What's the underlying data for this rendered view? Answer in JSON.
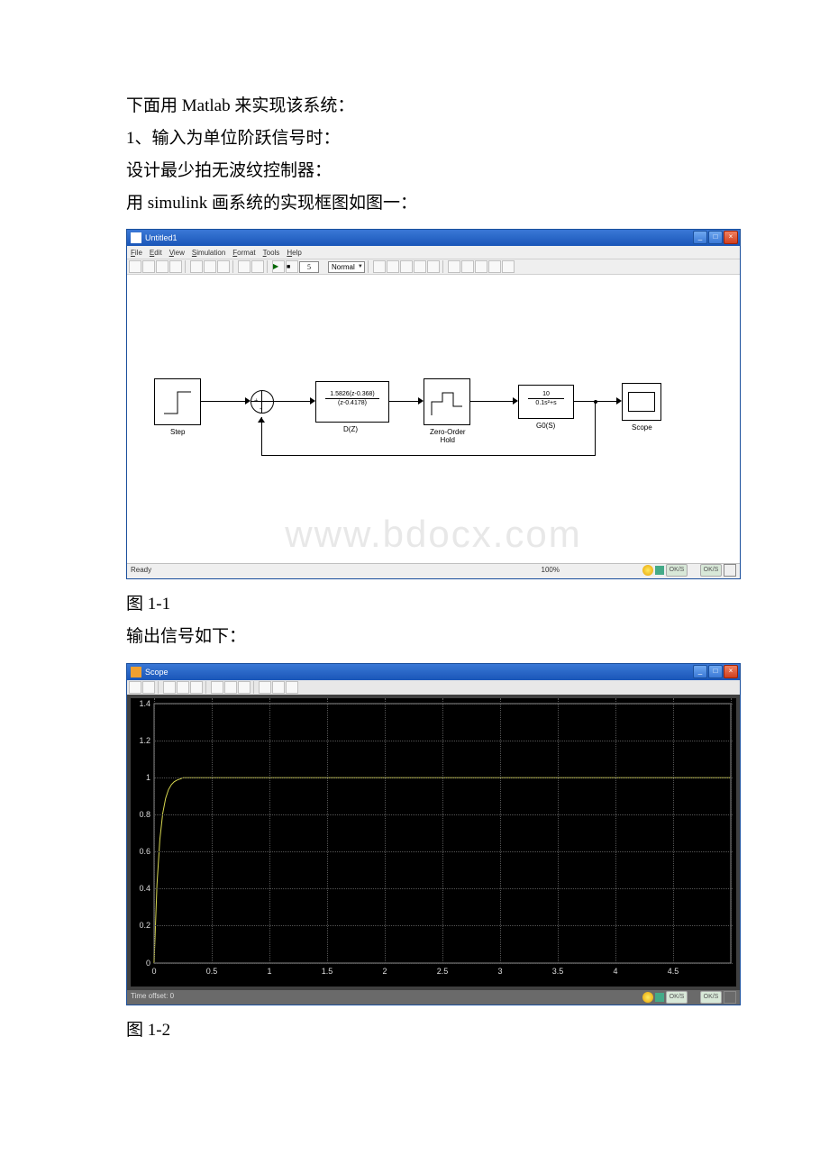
{
  "text": {
    "p1": "下面用 Matlab 来实现该系统：",
    "p2": "1、输入为单位阶跃信号时：",
    "p3": "设计最少拍无波纹控制器：",
    "p4": "用 simulink 画系统的实现框图如图一：",
    "cap1": "图 1-1",
    "p5": "输出信号如下：",
    "cap2": "图 1-2"
  },
  "simulink": {
    "title": "Untitled1",
    "menus": [
      "File",
      "Edit",
      "View",
      "Simulation",
      "Format",
      "Tools",
      "Help"
    ],
    "mode": "Normal",
    "blocks": {
      "step": {
        "label": "Step"
      },
      "dz": {
        "label": "D(Z)",
        "num": "1.5826(z-0.368)",
        "den": "(z-0.4178)"
      },
      "zoh": {
        "label": "Zero-Order",
        "label2": "Hold"
      },
      "g0s": {
        "label": "G0(S)",
        "num": "10",
        "den": "0.1s²+s"
      },
      "scope": {
        "label": "Scope"
      }
    },
    "watermark": "www.bdocx.com",
    "status_ready": "Ready",
    "status_pct": "100%"
  },
  "scope": {
    "title": "Scope",
    "time_offset": "Time offset: 0",
    "plot": {
      "bg": "#000000",
      "line_color": "#d8d850",
      "grid_color": "#555555",
      "label_color": "#dddddd",
      "xlim": [
        0,
        5
      ],
      "ylim": [
        0,
        1.4
      ],
      "xticks": [
        0,
        0.5,
        1,
        1.5,
        2,
        2.5,
        3,
        3.5,
        4,
        4.5,
        5
      ],
      "yticks": [
        0,
        0.2,
        0.4,
        0.6,
        0.8,
        1,
        1.2,
        1.4
      ]
    }
  },
  "taskbar": {
    "items": [
      "OK/S",
      "OK/S"
    ]
  }
}
